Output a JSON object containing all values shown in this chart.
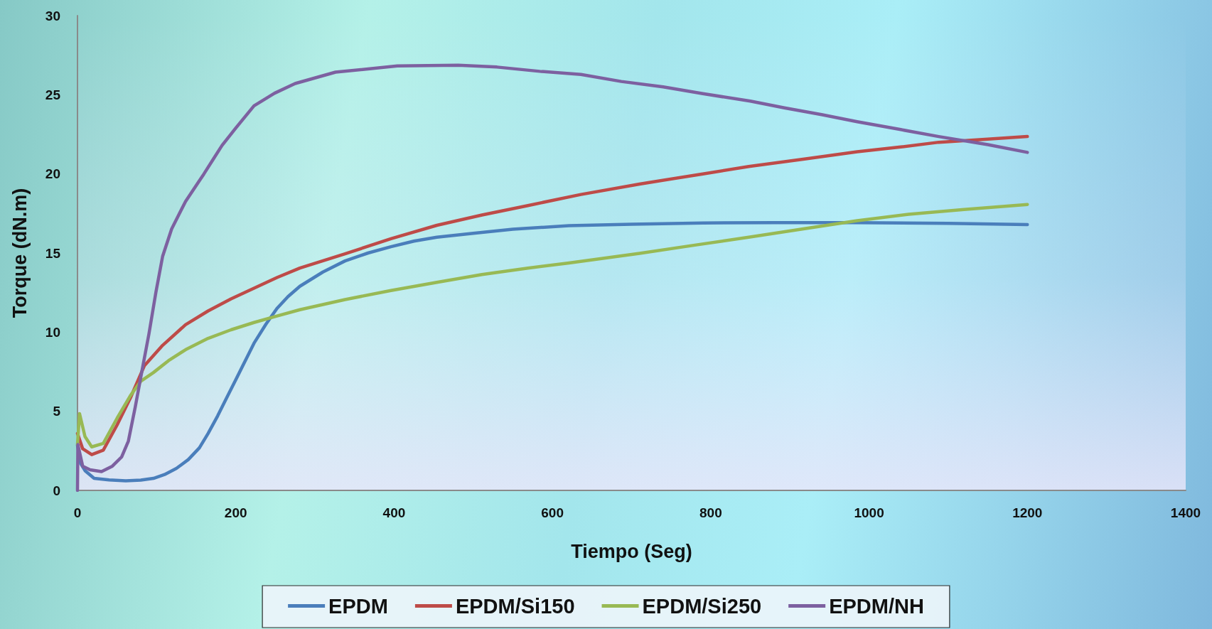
{
  "chart_data": {
    "type": "line",
    "xlabel": "Tiempo (Seg)",
    "ylabel": "Torque (dN.m)",
    "xlim": [
      0,
      1400
    ],
    "xticks": [
      0,
      200,
      400,
      600,
      800,
      1000,
      1200,
      1400
    ],
    "ylim": [
      0,
      30
    ],
    "yticks": [
      0,
      5,
      10,
      15,
      20,
      25,
      30
    ],
    "grid": false,
    "legend": "bottom",
    "marker": "none",
    "series": [
      {
        "name": "EPDM",
        "color": "#4a7ebb",
        "x": [
          0,
          4,
          9.5,
          21,
          40,
          61,
          80,
          96,
          110,
          125,
          140,
          154,
          165,
          177,
          188,
          200,
          212,
          223,
          238,
          252,
          266,
          281,
          310,
          338,
          367,
          396,
          425,
          454,
          500,
          550,
          621,
          700,
          790,
          880,
          980,
          1100,
          1200
        ],
        "values": [
          2.85,
          1.7,
          1.25,
          0.76,
          0.66,
          0.61,
          0.65,
          0.76,
          1.0,
          1.39,
          1.95,
          2.69,
          3.6,
          4.7,
          5.8,
          7.0,
          8.2,
          9.3,
          10.5,
          11.5,
          12.25,
          12.9,
          13.8,
          14.5,
          15.0,
          15.4,
          15.75,
          16.0,
          16.25,
          16.5,
          16.73,
          16.82,
          16.9,
          16.92,
          16.92,
          16.87,
          16.8
        ]
      },
      {
        "name": "EPDM/Si150",
        "color": "#be4b48",
        "x": [
          0,
          6.6,
          18,
          32.6,
          50,
          67,
          84.5,
          107.6,
          136.5,
          165,
          194,
          223,
          252,
          281,
          338,
          396,
          454,
          511,
          569,
          636,
          710,
          790,
          848,
          920,
          985,
          1040,
          1088,
          1150,
          1200
        ],
        "values": [
          3.6,
          2.63,
          2.26,
          2.54,
          4.13,
          5.86,
          7.88,
          9.17,
          10.47,
          11.34,
          12.1,
          12.78,
          13.45,
          14.05,
          14.95,
          15.9,
          16.75,
          17.4,
          18.0,
          18.7,
          19.36,
          20.0,
          20.47,
          20.95,
          21.4,
          21.7,
          22.0,
          22.2,
          22.36
        ]
      },
      {
        "name": "EPDM/Si250",
        "color": "#98b954",
        "x": [
          0,
          2.6,
          9.5,
          18,
          32.6,
          50,
          67,
          80,
          96,
          115,
          136.5,
          165,
          194,
          223,
          252,
          281,
          338,
          396,
          454,
          511,
          569,
          621,
          710,
          780,
          848,
          920,
          985,
          1050,
          1120,
          1200
        ],
        "values": [
          2.9,
          4.85,
          3.4,
          2.75,
          2.97,
          4.56,
          6.0,
          6.9,
          7.45,
          8.2,
          8.89,
          9.61,
          10.15,
          10.61,
          11.02,
          11.42,
          12.06,
          12.63,
          13.15,
          13.64,
          14.05,
          14.37,
          14.98,
          15.5,
          16.0,
          16.55,
          17.04,
          17.45,
          17.75,
          18.07
        ]
      },
      {
        "name": "EPDM/NH",
        "color": "#7d60a0",
        "x": [
          0,
          0.5,
          6.6,
          15.9,
          30.4,
          44,
          55.7,
          64.3,
          73,
          81.6,
          90.3,
          99,
          107.6,
          119,
          136.5,
          159.6,
          171.8,
          182.6,
          200,
          223,
          249,
          275,
          326,
          404,
          481,
          530,
          584,
          636,
          687,
          740,
          790,
          850,
          893,
          940,
          985,
          1040,
          1088,
          1150,
          1200
        ],
        "values": [
          0,
          2.9,
          1.53,
          1.3,
          1.19,
          1.53,
          2.11,
          3.12,
          5.28,
          7.59,
          9.9,
          12.5,
          14.8,
          16.53,
          18.26,
          19.99,
          20.95,
          21.8,
          22.9,
          24.3,
          25.1,
          25.71,
          26.43,
          26.82,
          26.87,
          26.75,
          26.48,
          26.28,
          25.84,
          25.5,
          25.07,
          24.6,
          24.17,
          23.75,
          23.3,
          22.8,
          22.36,
          21.85,
          21.36
        ]
      }
    ]
  }
}
